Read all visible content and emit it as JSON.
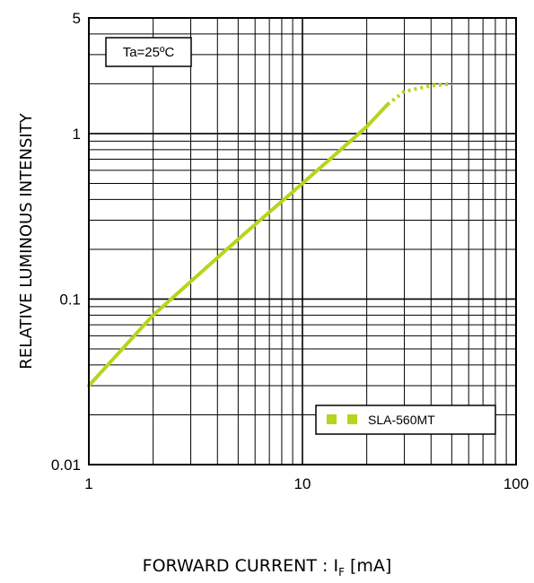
{
  "chart_data": {
    "type": "line",
    "title": "",
    "xlabel": "FORWARD CURRENT : I",
    "xlabel_subscript": "F",
    "xlabel_unit": " [mA]",
    "ylabel": "RELATIVE LUMINOUS INTENSITY",
    "x_scale": "log",
    "y_scale": "log",
    "xlim": [
      1,
      100
    ],
    "ylim": [
      0.01,
      5
    ],
    "x_ticks": [
      {
        "value": 1,
        "label": "1"
      },
      {
        "value": 10,
        "label": "10"
      },
      {
        "value": 100,
        "label": "100"
      }
    ],
    "y_ticks": [
      {
        "value": 0.01,
        "label": "0.01"
      },
      {
        "value": 0.1,
        "label": "0.1"
      },
      {
        "value": 1,
        "label": "1"
      },
      {
        "value": 5,
        "label": "5"
      }
    ],
    "grid": true,
    "annotation": "Ta=25ºC",
    "legend_position": "bottom-right",
    "series": [
      {
        "name": "SLA-560MT",
        "color": "#b8d41c",
        "solid": [
          {
            "x": 1,
            "y": 0.03
          },
          {
            "x": 2,
            "y": 0.08
          },
          {
            "x": 5,
            "y": 0.23
          },
          {
            "x": 10,
            "y": 0.5
          },
          {
            "x": 20,
            "y": 1.1
          },
          {
            "x": 25,
            "y": 1.5
          }
        ],
        "dotted": [
          {
            "x": 25,
            "y": 1.5
          },
          {
            "x": 30,
            "y": 1.8
          },
          {
            "x": 40,
            "y": 1.95
          },
          {
            "x": 50,
            "y": 2.0
          }
        ]
      }
    ]
  }
}
